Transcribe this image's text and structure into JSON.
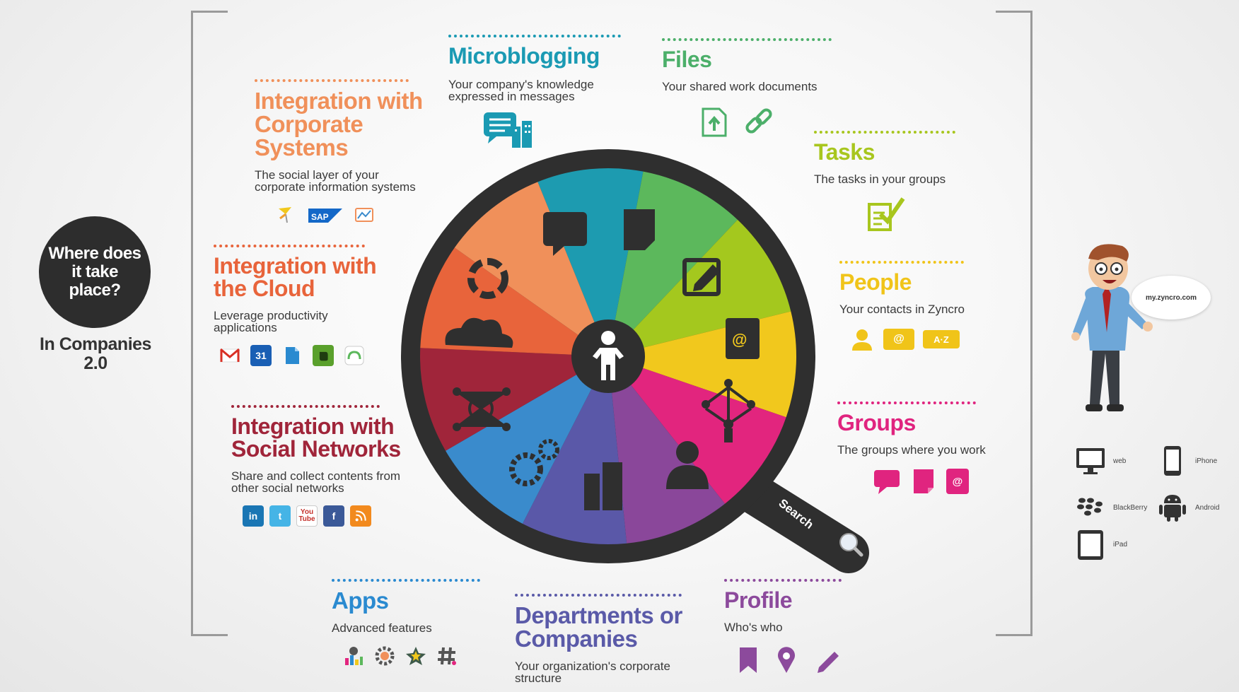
{
  "where": {
    "question": "Where does it take place?",
    "answer": "In Companies 2.0"
  },
  "sections": {
    "microblogging": {
      "title": "Microblogging",
      "desc": "Your company's knowledge expressed in messages",
      "color": "#1a9ab3"
    },
    "files": {
      "title": "Files",
      "desc": "Your shared work documents",
      "color": "#4caf6a"
    },
    "tasks": {
      "title": "Tasks",
      "desc": "The tasks in your groups",
      "color": "#a8c61e"
    },
    "people": {
      "title": "People",
      "desc": "Your contacts in Zyncro",
      "az_label": "A·Z",
      "color": "#f0c419"
    },
    "groups": {
      "title": "Groups",
      "desc": "The groups where you work",
      "color": "#e0247f"
    },
    "profile": {
      "title": "Profile",
      "desc": "Who's who",
      "color": "#8c4a9c"
    },
    "departments": {
      "title": "Departments or Companies",
      "desc": "Your organization's corporate structure",
      "color": "#5a5aa8"
    },
    "apps": {
      "title": "Apps",
      "desc": "Advanced features",
      "color": "#2a8ad0"
    },
    "social": {
      "title": "Integration with Social Networks",
      "desc": "Share and collect contents from other social networks",
      "color": "#a0253a",
      "youtube_label": "You Tube"
    },
    "cloud": {
      "title": "Integration with the Cloud",
      "desc": "Leverage productivity applications",
      "color": "#e8643b",
      "calendar_label": "31"
    },
    "corporate": {
      "title": "Integration with Corporate Systems",
      "desc": "The social layer of your corporate information systems",
      "color": "#f0905a",
      "sap_label": "SAP"
    }
  },
  "wheel": {
    "handle_label": "Search",
    "slice_colors": [
      "#1d9bb0",
      "#5cb85c",
      "#a4c81e",
      "#f1c81d",
      "#e2257e",
      "#8a479a",
      "#5a58a8",
      "#3a8bcc",
      "#a0253a",
      "#e8643b",
      "#f0905a"
    ]
  },
  "mascot": {
    "speech": "my.zyncro.com"
  },
  "devices": [
    "web",
    "iPhone",
    "BlackBerry",
    "Android",
    "iPad"
  ]
}
